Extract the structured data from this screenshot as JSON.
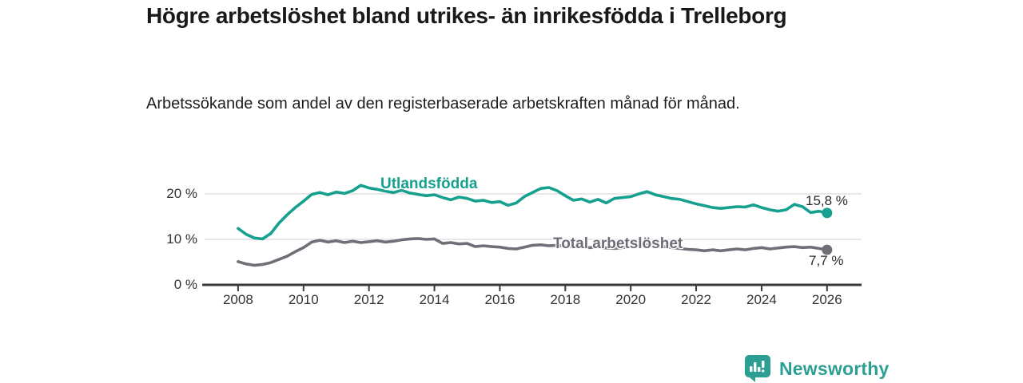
{
  "header": {
    "title": "Högre arbetslöshet bland utrikes- än inrikesfödda i Trelleborg",
    "subtitle": "Arbetssökande som andel av den registerbaserade arbetskraften månad för månad."
  },
  "colors": {
    "accent_teal": "#16a08f",
    "series_gray": "#706f78",
    "axis": "#3a3a3a",
    "gridline": "#d9d9d9",
    "tick_text": "#333333",
    "value_text": "#2b2b2b",
    "brand_teal": "#2d9f92",
    "background": "#ffffff"
  },
  "chart_data": {
    "type": "line",
    "title": "Högre arbetslöshet bland utrikes- än inrikesfödda i Trelleborg",
    "subtitle": "Arbetssökande som andel av den registerbaserade arbetskraften månad för månad.",
    "xlabel": "",
    "ylabel": "",
    "unit": "%",
    "xlim": [
      2008,
      2027
    ],
    "ylim": [
      0,
      24
    ],
    "grid": "horizontal-only",
    "legend_position": "inline-labels",
    "x_ticks": [
      2008,
      2010,
      2012,
      2014,
      2016,
      2018,
      2020,
      2022,
      2024,
      2026
    ],
    "x_tick_labels": [
      "2008",
      "2010",
      "2012",
      "2014",
      "2016",
      "2018",
      "2020",
      "2022",
      "2024",
      "2026"
    ],
    "y_ticks": [
      0,
      10,
      20
    ],
    "y_tick_labels": [
      "0 %",
      "10 %",
      "20 %"
    ],
    "y_gridlines": [
      10,
      20
    ],
    "series": [
      {
        "name": "Utlandsfödda",
        "color": "#16a08f",
        "end_value": 15.8,
        "end_value_label": "15,8 %",
        "points": [
          [
            2008.0,
            12.4
          ],
          [
            2008.25,
            11.1
          ],
          [
            2008.5,
            10.3
          ],
          [
            2008.75,
            10.1
          ],
          [
            2009.0,
            11.3
          ],
          [
            2009.25,
            13.6
          ],
          [
            2009.5,
            15.4
          ],
          [
            2009.75,
            17.0
          ],
          [
            2010.0,
            18.4
          ],
          [
            2010.25,
            19.9
          ],
          [
            2010.5,
            20.3
          ],
          [
            2010.75,
            19.8
          ],
          [
            2011.0,
            20.4
          ],
          [
            2011.25,
            20.1
          ],
          [
            2011.5,
            20.7
          ],
          [
            2011.75,
            21.9
          ],
          [
            2012.0,
            21.3
          ],
          [
            2012.25,
            21.0
          ],
          [
            2012.5,
            20.6
          ],
          [
            2012.75,
            20.3
          ],
          [
            2013.0,
            20.8
          ],
          [
            2013.25,
            20.2
          ],
          [
            2013.5,
            19.9
          ],
          [
            2013.75,
            19.6
          ],
          [
            2014.0,
            19.8
          ],
          [
            2014.25,
            19.2
          ],
          [
            2014.5,
            18.7
          ],
          [
            2014.75,
            19.3
          ],
          [
            2015.0,
            19.0
          ],
          [
            2015.25,
            18.4
          ],
          [
            2015.5,
            18.6
          ],
          [
            2015.75,
            18.1
          ],
          [
            2016.0,
            18.3
          ],
          [
            2016.25,
            17.5
          ],
          [
            2016.5,
            18.0
          ],
          [
            2016.75,
            19.4
          ],
          [
            2017.0,
            20.3
          ],
          [
            2017.25,
            21.2
          ],
          [
            2017.5,
            21.4
          ],
          [
            2017.75,
            20.7
          ],
          [
            2018.0,
            19.6
          ],
          [
            2018.25,
            18.6
          ],
          [
            2018.5,
            18.9
          ],
          [
            2018.75,
            18.2
          ],
          [
            2019.0,
            18.8
          ],
          [
            2019.25,
            18.0
          ],
          [
            2019.5,
            19.0
          ],
          [
            2019.75,
            19.2
          ],
          [
            2020.0,
            19.4
          ],
          [
            2020.25,
            20.0
          ],
          [
            2020.5,
            20.5
          ],
          [
            2020.75,
            19.8
          ],
          [
            2021.0,
            19.4
          ],
          [
            2021.25,
            19.0
          ],
          [
            2021.5,
            18.8
          ],
          [
            2021.75,
            18.3
          ],
          [
            2022.0,
            17.8
          ],
          [
            2022.25,
            17.4
          ],
          [
            2022.5,
            17.0
          ],
          [
            2022.75,
            16.8
          ],
          [
            2023.0,
            17.0
          ],
          [
            2023.25,
            17.2
          ],
          [
            2023.5,
            17.1
          ],
          [
            2023.75,
            17.6
          ],
          [
            2024.0,
            17.0
          ],
          [
            2024.25,
            16.5
          ],
          [
            2024.5,
            16.2
          ],
          [
            2024.75,
            16.5
          ],
          [
            2025.0,
            17.7
          ],
          [
            2025.25,
            17.2
          ],
          [
            2025.5,
            15.9
          ],
          [
            2025.75,
            16.2
          ],
          [
            2026.0,
            15.8
          ]
        ]
      },
      {
        "name": "Total arbetslöshet",
        "color": "#706f78",
        "end_value": 7.7,
        "end_value_label": "7,7 %",
        "points": [
          [
            2008.0,
            5.1
          ],
          [
            2008.25,
            4.6
          ],
          [
            2008.5,
            4.3
          ],
          [
            2008.75,
            4.5
          ],
          [
            2009.0,
            4.9
          ],
          [
            2009.25,
            5.6
          ],
          [
            2009.5,
            6.3
          ],
          [
            2009.75,
            7.3
          ],
          [
            2010.0,
            8.2
          ],
          [
            2010.25,
            9.4
          ],
          [
            2010.5,
            9.8
          ],
          [
            2010.75,
            9.4
          ],
          [
            2011.0,
            9.7
          ],
          [
            2011.25,
            9.3
          ],
          [
            2011.5,
            9.6
          ],
          [
            2011.75,
            9.3
          ],
          [
            2012.0,
            9.5
          ],
          [
            2012.25,
            9.7
          ],
          [
            2012.5,
            9.4
          ],
          [
            2012.75,
            9.6
          ],
          [
            2013.0,
            9.9
          ],
          [
            2013.25,
            10.1
          ],
          [
            2013.5,
            10.2
          ],
          [
            2013.75,
            10.0
          ],
          [
            2014.0,
            10.1
          ],
          [
            2014.25,
            9.1
          ],
          [
            2014.5,
            9.3
          ],
          [
            2014.75,
            9.0
          ],
          [
            2015.0,
            9.1
          ],
          [
            2015.25,
            8.4
          ],
          [
            2015.5,
            8.6
          ],
          [
            2015.75,
            8.4
          ],
          [
            2016.0,
            8.3
          ],
          [
            2016.25,
            8.0
          ],
          [
            2016.5,
            7.9
          ],
          [
            2016.75,
            8.3
          ],
          [
            2017.0,
            8.7
          ],
          [
            2017.25,
            8.8
          ],
          [
            2017.5,
            8.6
          ],
          [
            2017.75,
            8.7
          ],
          [
            2018.0,
            8.5
          ],
          [
            2018.25,
            8.4
          ],
          [
            2018.5,
            8.3
          ],
          [
            2018.75,
            8.2
          ],
          [
            2019.0,
            8.3
          ],
          [
            2019.25,
            8.1
          ],
          [
            2019.5,
            8.0
          ],
          [
            2019.75,
            8.2
          ],
          [
            2020.0,
            8.4
          ],
          [
            2020.25,
            8.6
          ],
          [
            2020.5,
            8.8
          ],
          [
            2020.75,
            8.6
          ],
          [
            2021.0,
            8.4
          ],
          [
            2021.25,
            8.2
          ],
          [
            2021.5,
            8.0
          ],
          [
            2021.75,
            7.8
          ],
          [
            2022.0,
            7.7
          ],
          [
            2022.25,
            7.5
          ],
          [
            2022.5,
            7.7
          ],
          [
            2022.75,
            7.5
          ],
          [
            2023.0,
            7.7
          ],
          [
            2023.25,
            7.9
          ],
          [
            2023.5,
            7.7
          ],
          [
            2023.75,
            8.0
          ],
          [
            2024.0,
            8.2
          ],
          [
            2024.25,
            7.9
          ],
          [
            2024.5,
            8.1
          ],
          [
            2024.75,
            8.3
          ],
          [
            2025.0,
            8.4
          ],
          [
            2025.25,
            8.2
          ],
          [
            2025.5,
            8.3
          ],
          [
            2025.75,
            8.0
          ],
          [
            2026.0,
            7.7
          ]
        ]
      }
    ]
  },
  "branding": {
    "logo_text": "Newsworthy",
    "logo_icon": "bar-chart-speech-bubble-icon"
  }
}
